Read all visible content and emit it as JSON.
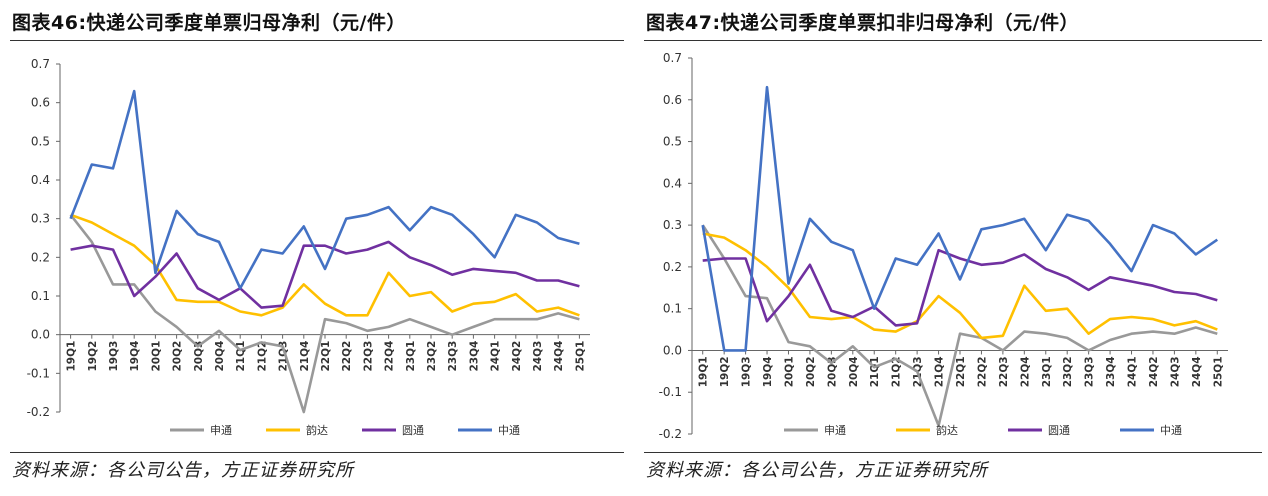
{
  "figures": [
    {
      "title": "图表46:快递公司季度单票归母净利（元/件）",
      "source": "资料来源：各公司公告，方正证券研究所"
    },
    {
      "title": "图表47:快递公司季度单票扣非归母净利（元/件）",
      "source": "资料来源：各公司公告，方正证券研究所"
    }
  ],
  "chart_data": [
    {
      "type": "line",
      "title": "图表46:快递公司季度单票归母净利（元/件）",
      "xlabel": "",
      "ylabel": "",
      "ylim": [
        -0.2,
        0.7
      ],
      "yticks": [
        -0.2,
        -0.1,
        0.0,
        0.1,
        0.2,
        0.3,
        0.4,
        0.5,
        0.6,
        0.7
      ],
      "ytick_labels": [
        "-0.2",
        "-0.1",
        "0.0",
        "0.1",
        "0.2",
        "0.3",
        "0.4",
        "0.5",
        "0.6",
        "0.7"
      ],
      "grid": false,
      "legend_position": "bottom",
      "categories": [
        "19Q1",
        "19Q2",
        "19Q3",
        "19Q4",
        "20Q1",
        "20Q2",
        "20Q3",
        "20Q4",
        "21Q1",
        "21Q2",
        "21Q3",
        "21Q4",
        "22Q1",
        "22Q2",
        "22Q3",
        "22Q4",
        "23Q1",
        "23Q2",
        "23Q3",
        "23Q4",
        "24Q1",
        "24Q2",
        "24Q3",
        "24Q4",
        "25Q1"
      ],
      "series": [
        {
          "name": "申通",
          "color": "#999999",
          "values": [
            0.31,
            0.24,
            0.13,
            0.13,
            0.06,
            0.02,
            -0.03,
            0.01,
            -0.04,
            -0.02,
            -0.03,
            -0.2,
            0.04,
            0.03,
            0.01,
            0.02,
            0.04,
            0.02,
            0.0,
            0.02,
            0.04,
            0.04,
            0.04,
            0.055,
            0.04
          ]
        },
        {
          "name": "韵达",
          "color": "#FFC000",
          "values": [
            0.31,
            0.29,
            0.26,
            0.23,
            0.18,
            0.09,
            0.085,
            0.085,
            0.06,
            0.05,
            0.07,
            0.13,
            0.08,
            0.05,
            0.05,
            0.16,
            0.1,
            0.11,
            0.06,
            0.08,
            0.085,
            0.105,
            0.06,
            0.07,
            0.05
          ]
        },
        {
          "name": "圆通",
          "color": "#7030A0",
          "values": [
            0.22,
            0.23,
            0.22,
            0.1,
            0.15,
            0.21,
            0.12,
            0.09,
            0.12,
            0.07,
            0.075,
            0.23,
            0.23,
            0.21,
            0.22,
            0.24,
            0.2,
            0.18,
            0.155,
            0.17,
            0.165,
            0.16,
            0.14,
            0.14,
            0.125
          ]
        },
        {
          "name": "中通",
          "color": "#4472C4",
          "values": [
            0.3,
            0.44,
            0.43,
            0.63,
            0.16,
            0.32,
            0.26,
            0.24,
            0.12,
            0.22,
            0.21,
            0.28,
            0.17,
            0.3,
            0.31,
            0.33,
            0.27,
            0.33,
            0.31,
            0.26,
            0.2,
            0.31,
            0.29,
            0.25,
            0.235
          ]
        }
      ]
    },
    {
      "type": "line",
      "title": "图表47:快递公司季度单票扣非归母净利（元/件）",
      "xlabel": "",
      "ylabel": "",
      "ylim": [
        -0.2,
        0.7
      ],
      "yticks": [
        -0.2,
        -0.1,
        0.0,
        0.1,
        0.2,
        0.3,
        0.4,
        0.5,
        0.6,
        0.7
      ],
      "ytick_labels": [
        "-0.2",
        "-0.1",
        "0.0",
        "0.1",
        "0.2",
        "0.3",
        "0.4",
        "0.5",
        "0.6",
        "0.7"
      ],
      "grid": false,
      "legend_position": "bottom",
      "categories": [
        "19Q1",
        "19Q2",
        "19Q3",
        "19Q4",
        "20Q1",
        "20Q2",
        "20Q3",
        "20Q4",
        "21Q1",
        "21Q2",
        "21Q3",
        "21Q4",
        "22Q1",
        "22Q2",
        "22Q3",
        "22Q4",
        "23Q1",
        "23Q2",
        "23Q3",
        "23Q4",
        "24Q1",
        "24Q2",
        "24Q3",
        "24Q4",
        "25Q1"
      ],
      "series": [
        {
          "name": "申通",
          "color": "#999999",
          "values": [
            0.3,
            0.22,
            0.13,
            0.125,
            0.02,
            0.01,
            -0.03,
            0.01,
            -0.04,
            -0.02,
            -0.05,
            -0.18,
            0.04,
            0.03,
            0.0,
            0.045,
            0.04,
            0.03,
            0.0,
            0.025,
            0.04,
            0.045,
            0.04,
            0.055,
            0.04
          ]
        },
        {
          "name": "韵达",
          "color": "#FFC000",
          "values": [
            0.28,
            0.27,
            0.24,
            0.2,
            0.15,
            0.08,
            0.075,
            0.08,
            0.05,
            0.045,
            0.07,
            0.13,
            0.09,
            0.03,
            0.035,
            0.155,
            0.095,
            0.1,
            0.04,
            0.075,
            0.08,
            0.075,
            0.06,
            0.07,
            0.05
          ]
        },
        {
          "name": "圆通",
          "color": "#7030A0",
          "values": [
            0.215,
            0.22,
            0.22,
            0.07,
            0.13,
            0.205,
            0.095,
            0.08,
            0.105,
            0.06,
            0.065,
            0.24,
            0.22,
            0.205,
            0.21,
            0.23,
            0.195,
            0.175,
            0.145,
            0.175,
            0.165,
            0.155,
            0.14,
            0.135,
            0.12
          ]
        },
        {
          "name": "中通",
          "color": "#4472C4",
          "values": [
            0.3,
            0.0,
            0.0,
            0.63,
            0.16,
            0.315,
            0.26,
            0.24,
            0.1,
            0.22,
            0.205,
            0.28,
            0.17,
            0.29,
            0.3,
            0.315,
            0.24,
            0.325,
            0.31,
            0.255,
            0.19,
            0.3,
            0.28,
            0.23,
            0.265
          ]
        }
      ]
    }
  ]
}
